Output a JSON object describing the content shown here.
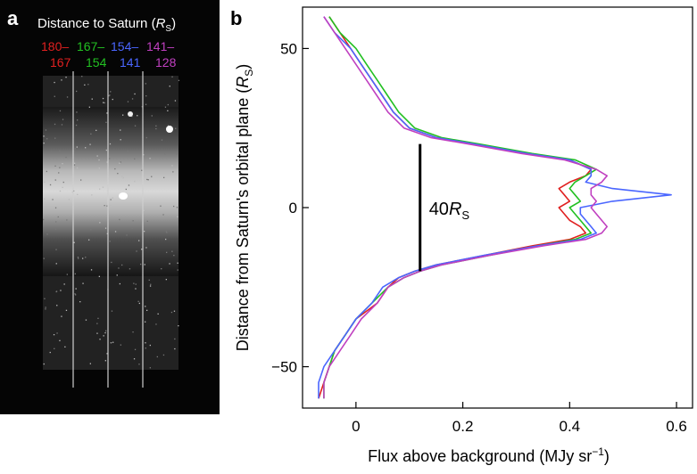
{
  "panel_a": {
    "letter": "a",
    "title": "Distance to Saturn (",
    "title_unit": "R",
    "title_sub": "S",
    "title_close": ")",
    "ranges_top": [
      "180–",
      "167–",
      "154–",
      "141–"
    ],
    "ranges_bottom": [
      "167",
      "154",
      "141",
      "128"
    ],
    "range_colors": [
      "#e02020",
      "#22c022",
      "#4a66ff",
      "#c040c0"
    ]
  },
  "chart_data": {
    "type": "line",
    "panel_letter": "b",
    "xlabel": "Flux above background (MJy sr",
    "xlabel_sup": "−1",
    "xlabel_close": ")",
    "ylabel": "Distance from Saturn's orbital plane (",
    "ylabel_unit": "R",
    "ylabel_sub": "S",
    "ylabel_close": ")",
    "xlim": [
      -0.1,
      0.63
    ],
    "ylim": [
      -63,
      63
    ],
    "x_ticks": [
      0,
      0.2,
      0.4,
      0.6
    ],
    "x_tick_labels": [
      "0",
      "0.2",
      "0.4",
      "0.6"
    ],
    "y_ticks": [
      -50,
      0,
      50
    ],
    "y_tick_labels": [
      "−50",
      "0",
      "50"
    ],
    "annotation": {
      "text": "40",
      "unit": "R",
      "sub": "S",
      "x": 0.12,
      "y_from": -20,
      "y_to": 20
    },
    "series": [
      {
        "color": "#e02020",
        "y": [
          60,
          55,
          50,
          45,
          40,
          35,
          30,
          25,
          22,
          20,
          17,
          15,
          12,
          10,
          8,
          6,
          4,
          2,
          0,
          -2,
          -4,
          -6,
          -8,
          -10,
          -12,
          -15,
          -18,
          -20,
          -22,
          -25,
          -30,
          -35,
          -40,
          -45,
          -50,
          -55,
          -60
        ],
        "x": [
          -0.05,
          -0.03,
          -0.01,
          0.01,
          0.03,
          0.05,
          0.07,
          0.1,
          0.15,
          0.22,
          0.32,
          0.4,
          0.44,
          0.43,
          0.4,
          0.38,
          0.39,
          0.4,
          0.38,
          0.39,
          0.4,
          0.42,
          0.43,
          0.4,
          0.33,
          0.24,
          0.15,
          0.11,
          0.08,
          0.06,
          0.04,
          0.0,
          -0.02,
          -0.04,
          -0.05,
          -0.06,
          -0.07
        ]
      },
      {
        "color": "#22c022",
        "y": [
          60,
          55,
          50,
          45,
          40,
          35,
          30,
          25,
          22,
          20,
          17,
          15,
          12,
          10,
          8,
          6,
          4,
          2,
          0,
          -2,
          -4,
          -6,
          -8,
          -10,
          -12,
          -15,
          -18,
          -20,
          -22,
          -25,
          -30,
          -35,
          -40,
          -45,
          -50,
          -55,
          -60
        ],
        "x": [
          -0.05,
          -0.03,
          0.0,
          0.02,
          0.04,
          0.06,
          0.08,
          0.11,
          0.16,
          0.23,
          0.33,
          0.41,
          0.45,
          0.43,
          0.41,
          0.4,
          0.41,
          0.42,
          0.4,
          0.41,
          0.42,
          0.43,
          0.44,
          0.41,
          0.34,
          0.25,
          0.16,
          0.12,
          0.09,
          0.06,
          0.03,
          0.0,
          -0.02,
          -0.04,
          -0.05,
          -0.06,
          -0.06
        ]
      },
      {
        "color": "#4a66ff",
        "y": [
          60,
          55,
          50,
          45,
          40,
          35,
          30,
          25,
          22,
          20,
          17,
          15,
          12,
          10,
          8,
          6,
          4,
          2,
          0,
          -2,
          -4,
          -6,
          -8,
          -10,
          -12,
          -15,
          -18,
          -20,
          -22,
          -25,
          -30,
          -35,
          -40,
          -45,
          -50,
          -55,
          -60
        ],
        "x": [
          -0.06,
          -0.04,
          -0.01,
          0.01,
          0.03,
          0.05,
          0.07,
          0.1,
          0.15,
          0.22,
          0.32,
          0.4,
          0.44,
          0.44,
          0.43,
          0.48,
          0.59,
          0.48,
          0.42,
          0.42,
          0.43,
          0.44,
          0.45,
          0.42,
          0.34,
          0.24,
          0.15,
          0.11,
          0.08,
          0.05,
          0.03,
          0.0,
          -0.02,
          -0.04,
          -0.06,
          -0.07,
          -0.07
        ]
      },
      {
        "color": "#c040c0",
        "y": [
          60,
          55,
          50,
          45,
          40,
          35,
          30,
          25,
          22,
          20,
          17,
          15,
          12,
          10,
          8,
          6,
          4,
          2,
          0,
          -2,
          -4,
          -6,
          -8,
          -10,
          -12,
          -15,
          -18,
          -20,
          -22,
          -25,
          -30,
          -35,
          -40,
          -45,
          -50,
          -55,
          -60
        ],
        "x": [
          -0.06,
          -0.04,
          -0.02,
          0.0,
          0.02,
          0.04,
          0.06,
          0.09,
          0.14,
          0.21,
          0.31,
          0.39,
          0.45,
          0.47,
          0.46,
          0.44,
          0.44,
          0.45,
          0.44,
          0.45,
          0.46,
          0.47,
          0.46,
          0.43,
          0.35,
          0.25,
          0.16,
          0.12,
          0.09,
          0.06,
          0.04,
          0.01,
          -0.01,
          -0.03,
          -0.05,
          -0.06,
          -0.06
        ]
      }
    ]
  }
}
